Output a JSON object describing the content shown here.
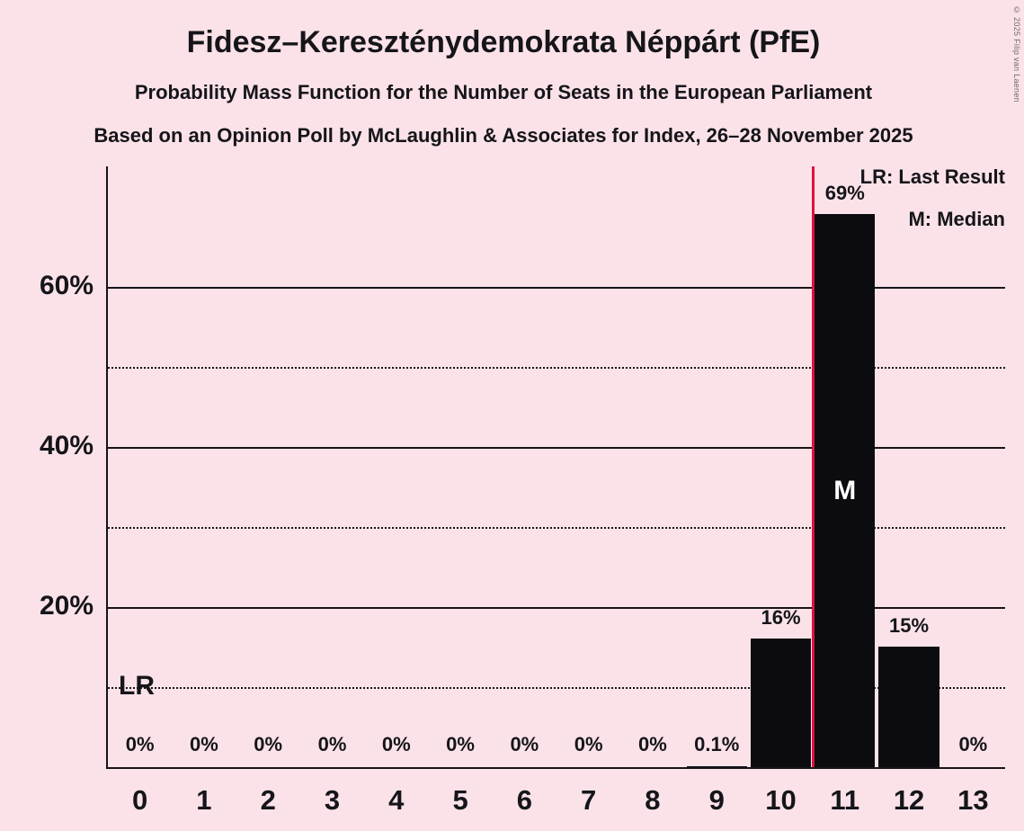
{
  "page": {
    "copyright": "© 2025 Filip van Laenen",
    "background_color": "#fae2e8"
  },
  "chart_data": {
    "type": "bar",
    "title": "Fidesz–Kereszténydemokrata Néppárt (PfE)",
    "subtitle1": "Probability Mass Function for the Number of Seats in the European Parliament",
    "subtitle2": "Based on an Opinion Poll by McLaughlin & Associates for Index, 26–28 November 2025",
    "xlabel": "",
    "ylabel": "",
    "categories": [
      "0",
      "1",
      "2",
      "3",
      "4",
      "5",
      "6",
      "7",
      "8",
      "9",
      "10",
      "11",
      "12",
      "13"
    ],
    "values": [
      0,
      0,
      0,
      0,
      0,
      0,
      0,
      0,
      0,
      0.1,
      16,
      69,
      15,
      0
    ],
    "bar_labels": [
      "0%",
      "0%",
      "0%",
      "0%",
      "0%",
      "0%",
      "0%",
      "0%",
      "0%",
      "0.1%",
      "16%",
      "69%",
      "15%",
      "0%"
    ],
    "ylim": [
      0,
      75
    ],
    "yticks": [
      {
        "value": 20,
        "label": "20%"
      },
      {
        "value": 40,
        "label": "40%"
      },
      {
        "value": 60,
        "label": "60%"
      }
    ],
    "gridlines": {
      "solid": [
        20,
        40,
        60
      ],
      "dotted": [
        10,
        30,
        50
      ]
    },
    "bar_color": "#0c0c10",
    "text_color": "#15151a",
    "last_result_line": {
      "between_categories": [
        "10",
        "11"
      ],
      "x_position": 11,
      "color": "#e0123e",
      "label": "LR"
    },
    "median": {
      "category": "11",
      "label": "M"
    },
    "legend": [
      {
        "label": "LR: Last Result"
      },
      {
        "label": "M: Median"
      }
    ],
    "legend_position": "top-right"
  }
}
